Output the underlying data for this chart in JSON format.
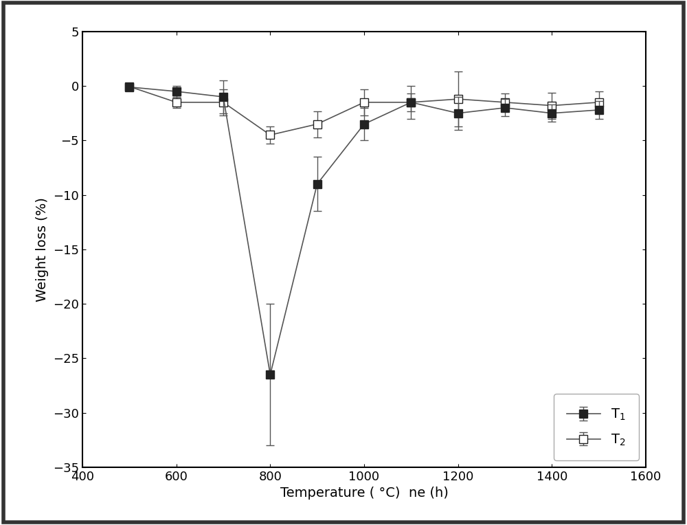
{
  "T1_x": [
    500,
    600,
    700,
    800,
    900,
    1000,
    1100,
    1200,
    1300,
    1400,
    1500
  ],
  "T1_y": [
    -0.1,
    -0.5,
    -1.0,
    -26.5,
    -9.0,
    -3.5,
    -1.5,
    -2.5,
    -2.0,
    -2.5,
    -2.2
  ],
  "T1_yerr": [
    0.3,
    0.5,
    1.5,
    6.5,
    2.5,
    1.5,
    0.8,
    1.5,
    0.8,
    0.8,
    0.8
  ],
  "T2_x": [
    500,
    600,
    700,
    800,
    900,
    1000,
    1100,
    1200,
    1300,
    1400,
    1500
  ],
  "T2_y": [
    -0.05,
    -1.5,
    -1.5,
    -4.5,
    -3.5,
    -1.5,
    -1.5,
    -1.2,
    -1.5,
    -1.8,
    -1.5
  ],
  "T2_yerr": [
    0.3,
    0.5,
    1.2,
    0.8,
    1.2,
    1.2,
    1.5,
    2.5,
    0.8,
    1.2,
    1.0
  ],
  "xlim": [
    400,
    1600
  ],
  "ylim": [
    -35,
    5
  ],
  "xticks": [
    400,
    600,
    800,
    1000,
    1200,
    1400,
    1600
  ],
  "yticks": [
    5,
    0,
    -5,
    -10,
    -15,
    -20,
    -25,
    -30,
    -35
  ],
  "xlabel": "Temperature ( °C)  ne (h)",
  "ylabel": "Weight loss (%)",
  "legend_T1": "T$_1$",
  "legend_T2": "T$_2$",
  "line_color": "#555555",
  "T1_marker_color": "#222222",
  "T2_marker_color": "#ffffff",
  "background_color": "#ffffff",
  "border_color": "#333333",
  "figsize": [
    10.0,
    7.64
  ]
}
